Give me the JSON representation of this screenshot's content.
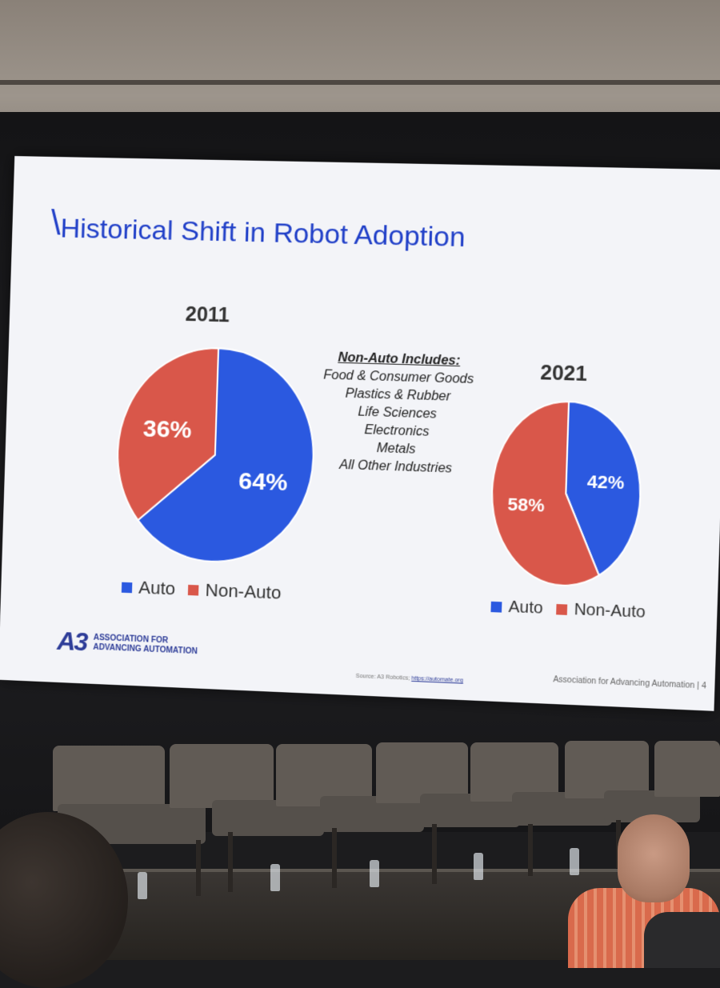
{
  "slide": {
    "title": "Historical Shift in Robot Adoption",
    "note_heading": "Non-Auto Includes:",
    "note_items": [
      "Food & Consumer Goods",
      "Plastics & Rubber",
      "Life Sciences",
      "Electronics",
      "Metals",
      "All Other Industries"
    ],
    "logo_text_line1": "ASSOCIATION FOR",
    "logo_text_line2": "ADVANCING AUTOMATION",
    "logo_mark": "A3",
    "source_label": "Source: A3 Robotics;",
    "source_link": "https://automate.org",
    "footer": "Association for Advancing Automation  |  4"
  },
  "colors": {
    "auto": "#2b59e0",
    "non_auto": "#d9574a",
    "title": "#2140c8"
  },
  "chart_data": [
    {
      "type": "pie",
      "title": "2011",
      "categories": [
        "Auto",
        "Non-Auto"
      ],
      "values": [
        64,
        36
      ],
      "labels": [
        "64%",
        "36%"
      ],
      "legend": [
        "Auto",
        "Non-Auto"
      ],
      "legend_placement": "bottom"
    },
    {
      "type": "pie",
      "title": "2021",
      "categories": [
        "Auto",
        "Non-Auto"
      ],
      "values": [
        42,
        58
      ],
      "labels": [
        "42%",
        "58%"
      ],
      "legend": [
        "Auto",
        "Non-Auto"
      ],
      "legend_placement": "bottom"
    }
  ]
}
